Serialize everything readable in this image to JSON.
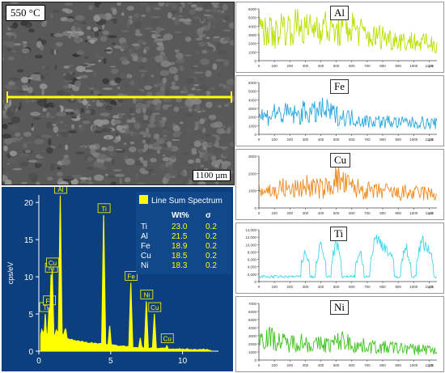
{
  "sem_image": {
    "temperature_label": "550 °C",
    "scale_bar_label": "1100 µm",
    "line_color": "#ffff00"
  },
  "chart_data": [
    {
      "type": "bar",
      "panel": "EDS line sum spectrum",
      "background": "#0c3f7e",
      "bar_color": "#ffff00",
      "legend_label": "Line Sum Spectrum",
      "ylabel": "cps/eV",
      "xlim": [
        0,
        12.5
      ],
      "ylim": [
        0,
        21
      ],
      "xticks": [
        "0",
        "5",
        "10"
      ],
      "yticks": [
        "0",
        "5",
        "10",
        "15",
        "20"
      ],
      "peaks": [
        {
          "label": "Ti",
          "x": 0.45,
          "value": 5.0
        },
        {
          "label": "Fe",
          "x": 0.71,
          "value": 5.9
        },
        {
          "label": "Ni",
          "x": 0.85,
          "value": 10.3
        },
        {
          "label": "Cu",
          "x": 0.93,
          "value": 11.0
        },
        {
          "label": "Al",
          "x": 1.49,
          "value": 20.9
        },
        {
          "label": "Ti",
          "x": 4.51,
          "value": 18.3
        },
        {
          "label": "",
          "x": 4.93,
          "value": 3.4
        },
        {
          "label": "Fe",
          "x": 6.4,
          "value": 9.2
        },
        {
          "label": "",
          "x": 7.06,
          "value": 1.8
        },
        {
          "label": "Ni",
          "x": 7.48,
          "value": 6.7
        },
        {
          "label": "Cu",
          "x": 8.04,
          "value": 5.0
        },
        {
          "label": "Cu",
          "x": 8.91,
          "value": 0.8
        }
      ],
      "table": {
        "headers": [
          "",
          "Wt%",
          "σ"
        ],
        "rows": [
          [
            "Ti",
            "23.0",
            "0.2"
          ],
          [
            "Al",
            "21.5",
            "0.2"
          ],
          [
            "Fe",
            "18.9",
            "0.2"
          ],
          [
            "Cu",
            "18.5",
            "0.2"
          ],
          [
            "Ni",
            "18.3",
            "0.2"
          ]
        ]
      }
    },
    {
      "type": "line",
      "element": "Al",
      "color": "#b8e000",
      "xlim": [
        0,
        1150
      ],
      "ylim": [
        0,
        6000
      ],
      "yticks": [
        "0",
        "1000",
        "2000",
        "3000",
        "4000",
        "5000",
        "6000"
      ],
      "xticks": [
        "0",
        "100",
        "200",
        "300",
        "400",
        "500",
        "600",
        "700",
        "800",
        "900",
        "1000",
        "1100"
      ],
      "xunit": "µm",
      "profile": [
        3200,
        3800,
        2900,
        4100,
        3600,
        4300,
        3500,
        3900,
        4200,
        3700,
        3300,
        3600,
        4000,
        3400,
        2800,
        2700,
        2900,
        2500,
        2600,
        2200,
        2300,
        2000,
        2100,
        1900
      ]
    },
    {
      "type": "line",
      "element": "Fe",
      "color": "#29a6dc",
      "xlim": [
        0,
        1150
      ],
      "ylim": [
        0,
        6000
      ],
      "yticks": [
        "0",
        "1000",
        "2000",
        "3000",
        "4000",
        "5000",
        "6000"
      ],
      "xticks": [
        "0",
        "100",
        "200",
        "300",
        "400",
        "500",
        "600",
        "700",
        "800",
        "900",
        "1000",
        "1100"
      ],
      "xunit": "µm",
      "profile": [
        2300,
        2000,
        2600,
        2200,
        2500,
        2100,
        2700,
        2400,
        2800,
        2600,
        2200,
        2000,
        1900,
        1700,
        1500,
        1600,
        1400,
        1500,
        1300,
        1400,
        1300,
        1400,
        1200,
        1300
      ]
    },
    {
      "type": "line",
      "element": "Cu",
      "color": "#ef8a1c",
      "xlim": [
        0,
        1150
      ],
      "ylim": [
        0,
        3000
      ],
      "yticks": [
        "0",
        "1000",
        "2000",
        "3000"
      ],
      "xticks": [
        "0",
        "100",
        "200",
        "300",
        "400",
        "500",
        "600",
        "700",
        "800",
        "900",
        "1000",
        "1100"
      ],
      "xunit": "µm",
      "profile": [
        1000,
        1100,
        900,
        1200,
        1000,
        1100,
        1300,
        1200,
        1100,
        1200,
        1700,
        1400,
        1200,
        1100,
        1000,
        900,
        1000,
        900,
        800,
        900,
        800,
        900,
        800,
        800
      ]
    },
    {
      "type": "line",
      "element": "Ti",
      "color": "#3fd6ee",
      "xlim": [
        0,
        1150
      ],
      "ylim": [
        0,
        14000
      ],
      "yticks": [
        "0",
        "2,000",
        "4,000",
        "6,000",
        "8,000",
        "10,000",
        "12,000",
        "14,000"
      ],
      "xticks": [
        "0",
        "100",
        "200",
        "300",
        "400",
        "500",
        "600",
        "700",
        "800",
        "900",
        "1000",
        "1100"
      ],
      "xunit": "µm",
      "profile": [
        1500,
        1200,
        1400,
        2000,
        1300,
        1600,
        9000,
        1500,
        11000,
        1400,
        12000,
        1600,
        1500,
        9000,
        1400,
        12500,
        11000,
        8000,
        1600,
        10500,
        1500,
        12000,
        9500,
        1500
      ]
    },
    {
      "type": "line",
      "element": "Ni",
      "color": "#3dc21f",
      "xlim": [
        0,
        1150
      ],
      "ylim": [
        0,
        7000
      ],
      "yticks": [
        "0",
        "1000",
        "2000",
        "3000",
        "4000",
        "5000",
        "6000",
        "7000"
      ],
      "xticks": [
        "0",
        "100",
        "200",
        "300",
        "400",
        "500",
        "600",
        "700",
        "800",
        "900",
        "1000",
        "1100"
      ],
      "xunit": "µm",
      "profile": [
        2600,
        3000,
        2500,
        2200,
        2000,
        2400,
        2100,
        1800,
        2000,
        1900,
        2200,
        2500,
        1900,
        1700,
        1800,
        1600,
        1500,
        1600,
        1400,
        1500,
        1300,
        1400,
        1300,
        1200
      ]
    }
  ]
}
